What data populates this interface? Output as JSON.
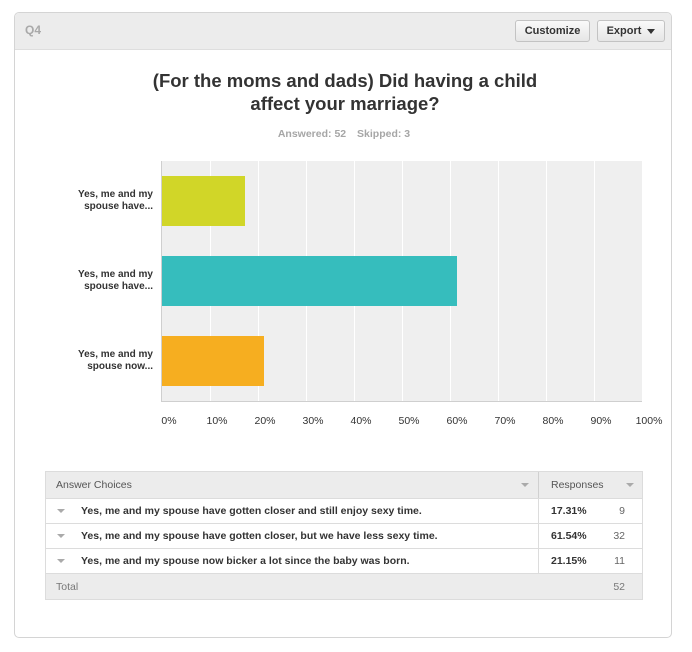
{
  "header": {
    "question_number": "Q4",
    "customize_label": "Customize",
    "export_label": "Export"
  },
  "question": {
    "title_line1": "(For the moms and dads) Did having a child",
    "title_line2": "affect your marriage?",
    "answered": "Answered: 52",
    "skipped": "Skipped: 3"
  },
  "chart_data": {
    "type": "bar",
    "orientation": "horizontal",
    "categories": [
      "Yes, me and my spouse have...",
      "Yes, me and my spouse have...",
      "Yes, me and my spouse now..."
    ],
    "category_lines": [
      [
        "Yes, me and my",
        "spouse have..."
      ],
      [
        "Yes, me and my",
        "spouse have..."
      ],
      [
        "Yes, me and my",
        "spouse now..."
      ]
    ],
    "values": [
      17.31,
      61.54,
      21.15
    ],
    "colors": [
      "#d1d628",
      "#36bdbd",
      "#f6ae20"
    ],
    "xlim": [
      0,
      100
    ],
    "xticks": [
      "0%",
      "10%",
      "20%",
      "30%",
      "40%",
      "50%",
      "60%",
      "70%",
      "80%",
      "90%",
      "100%"
    ],
    "grid": true
  },
  "table": {
    "col_choices": "Answer Choices",
    "col_responses": "Responses",
    "rows": [
      {
        "label": "Yes, me and my spouse have gotten closer and still enjoy sexy time.",
        "pct": "17.31%",
        "count": "9"
      },
      {
        "label": "Yes, me and my spouse have gotten closer, but we have less sexy time.",
        "pct": "61.54%",
        "count": "32"
      },
      {
        "label": "Yes, me and my spouse now bicker a lot since the baby was born.",
        "pct": "21.15%",
        "count": "11"
      }
    ],
    "total_label": "Total",
    "total_count": "52"
  },
  "icons": {
    "export_caret": "chevron-down-icon",
    "sort_caret": "sort-caret-icon",
    "row_caret": "expand-caret-icon"
  }
}
